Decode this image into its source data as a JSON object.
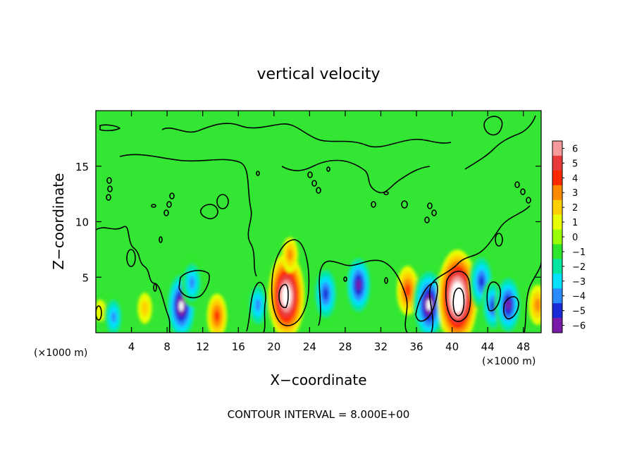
{
  "chart_data": {
    "type": "heatmap",
    "title": "vertical velocity",
    "xlabel": "X−coordinate",
    "ylabel": "Z−coordinate",
    "x_unit_left": "(×1000 m)",
    "x_unit_right": "(×1000 m)",
    "xlim": [
      0,
      50
    ],
    "ylim": [
      0,
      20
    ],
    "x_ticks": [
      4,
      8,
      12,
      16,
      20,
      24,
      28,
      32,
      36,
      40,
      44,
      48
    ],
    "x_tick_labels": [
      "4",
      "8",
      "12",
      "16",
      "20",
      "24",
      "28",
      "32",
      "36",
      "40",
      "44",
      "48"
    ],
    "y_ticks": [
      5,
      10,
      15
    ],
    "y_tick_labels": [
      "5",
      "10",
      "15"
    ],
    "colorbar": {
      "min": -6,
      "max": 6,
      "tick_labels": [
        "6",
        "5",
        "4",
        "3",
        "2",
        "1",
        "0",
        "−1",
        "−2",
        "−3",
        "−4",
        "−5",
        "−6"
      ],
      "colors": [
        "#f59a9a",
        "#e83a3a",
        "#ff2a00",
        "#ff8a00",
        "#ffd000",
        "#e8ff00",
        "#9aff00",
        "#2ee62e",
        "#00e6a0",
        "#00e0ff",
        "#2a8cff",
        "#1a2ad6",
        "#7a1aa8"
      ]
    },
    "features": [
      {
        "x": 0.5,
        "z": 2.0,
        "w": 1.0
      },
      {
        "x": 2.0,
        "z": 1.4,
        "w": -3.5
      },
      {
        "x": 5.5,
        "z": 2.2,
        "w": 2.0
      },
      {
        "x": 9.6,
        "z": 2.4,
        "w": -6.5
      },
      {
        "x": 10.8,
        "z": 4.5,
        "w": -4.0
      },
      {
        "x": 13.6,
        "z": 1.5,
        "w": 3.5
      },
      {
        "x": 18.2,
        "z": 2.5,
        "w": -4.0
      },
      {
        "x": 21.4,
        "z": 3.3,
        "w": 8.0
      },
      {
        "x": 21.8,
        "z": 7.0,
        "w": 2.5
      },
      {
        "x": 25.8,
        "z": 3.5,
        "w": -5.0
      },
      {
        "x": 29.5,
        "z": 4.3,
        "w": -5.5
      },
      {
        "x": 35.0,
        "z": 3.8,
        "w": 4.0
      },
      {
        "x": 37.4,
        "z": 2.5,
        "w": -7.0
      },
      {
        "x": 40.6,
        "z": 3.2,
        "w": 9.0
      },
      {
        "x": 43.3,
        "z": 4.6,
        "w": -5.0
      },
      {
        "x": 44.6,
        "z": 2.4,
        "w": -4.5
      },
      {
        "x": 46.3,
        "z": 2.5,
        "w": -5.5
      },
      {
        "x": 49.6,
        "z": 2.5,
        "w": 3.0
      }
    ]
  },
  "footer": {
    "contour_interval": "CONTOUR INTERVAL = 8.000E+00"
  }
}
